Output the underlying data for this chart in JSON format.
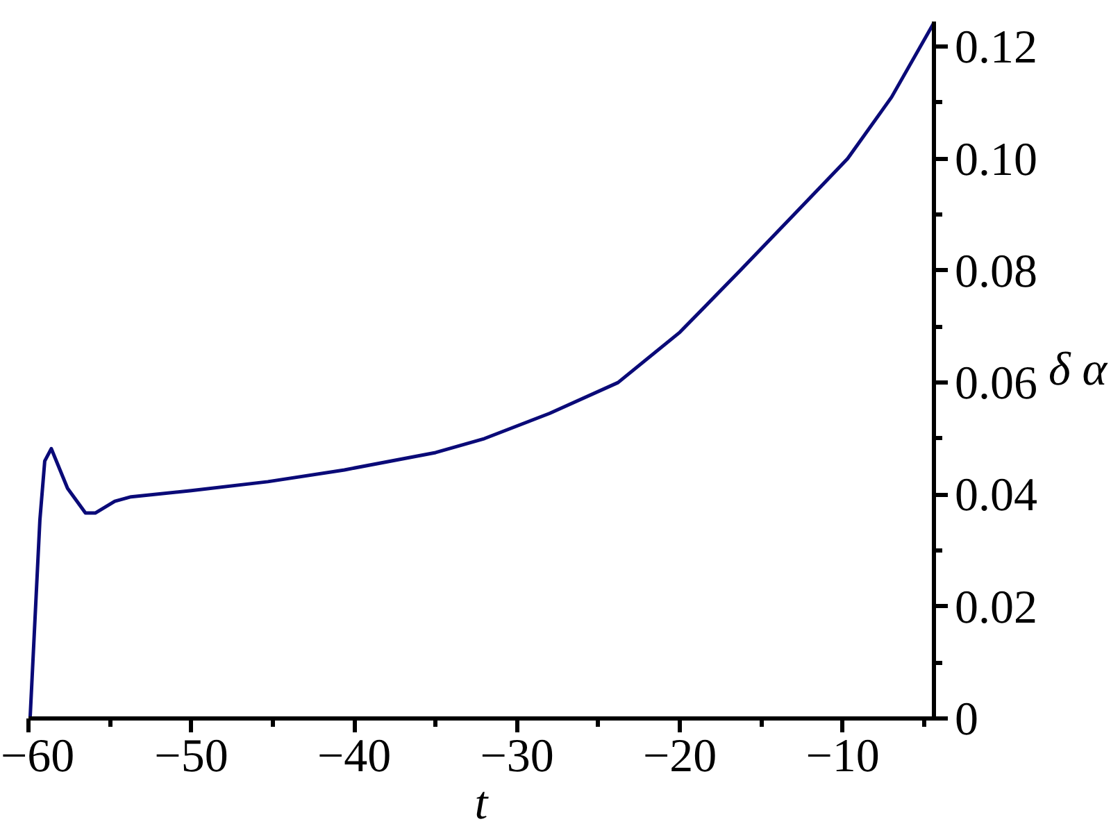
{
  "chart_data": {
    "type": "line",
    "xlabel": "t",
    "ylabel": "δ α",
    "x": [
      -59.9,
      -59.3,
      -59.0,
      -58.6,
      -57.6,
      -56.5,
      -55.9,
      -54.7,
      -53.7,
      -50.0,
      -45.3,
      -40.6,
      -35,
      -32,
      -28,
      -23.8,
      -20,
      -16.3,
      -13,
      -9.7,
      -7,
      -4.4
    ],
    "series": [
      {
        "color": "#0a0a78",
        "values": [
          0,
          0.0354,
          0.046,
          0.0482,
          0.0411,
          0.0367,
          0.0367,
          0.0388,
          0.0396,
          0.0407,
          0.0423,
          0.0444,
          0.0475,
          0.05,
          0.0545,
          0.06,
          0.069,
          0.08,
          0.09,
          0.1,
          0.111,
          0.1243
        ]
      }
    ],
    "xlim": [
      -60,
      -4.4
    ],
    "ylim": [
      0,
      0.1245
    ],
    "xticks": [
      {
        "value": -60,
        "label": "−60"
      },
      {
        "value": -50,
        "label": "−50"
      },
      {
        "value": -40,
        "label": "−40"
      },
      {
        "value": -30,
        "label": "−30"
      },
      {
        "value": -20,
        "label": "−20"
      },
      {
        "value": -10,
        "label": "−10"
      },
      {
        "value": -55,
        "label": null
      },
      {
        "value": -45,
        "label": null
      },
      {
        "value": -35,
        "label": null
      },
      {
        "value": -25,
        "label": null
      },
      {
        "value": -15,
        "label": null
      },
      {
        "value": -5,
        "label": null
      }
    ],
    "yticks": [
      0,
      {
        "value": 0.02,
        "label": "0.02"
      },
      {
        "value": 0.04,
        "label": "0.04"
      },
      {
        "value": 0.06,
        "label": "0.06"
      },
      {
        "value": 0.08,
        "label": "0.08"
      },
      {
        "value": 0.1,
        "label": "0.10"
      },
      {
        "value": 0.12,
        "label": "0.12"
      },
      {
        "value": 0.01,
        "label": null
      },
      {
        "value": 0.03,
        "label": null
      },
      {
        "value": 0.05,
        "label": null
      },
      {
        "value": 0.07,
        "label": null
      },
      {
        "value": 0.09,
        "label": null
      },
      {
        "value": 0.11,
        "label": null
      }
    ],
    "grid": false
  }
}
